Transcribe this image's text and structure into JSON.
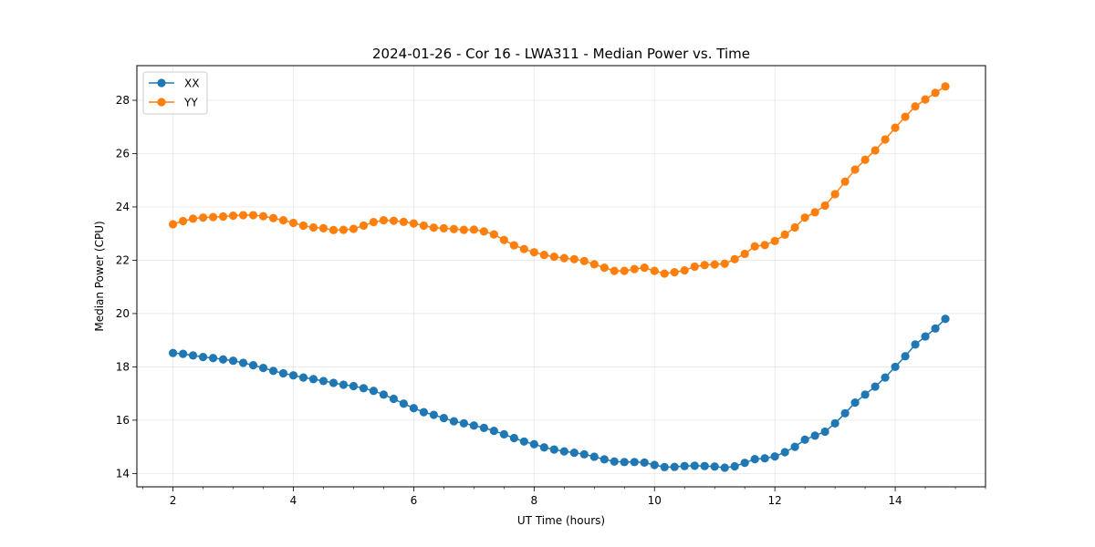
{
  "chart_data": {
    "type": "line",
    "title": "2024-01-26 - Cor 16 - LWA311 - Median Power vs. Time",
    "xlabel": "UT Time (hours)",
    "ylabel": "Median Power (CPU)",
    "xlim": [
      1.4,
      15.5
    ],
    "ylim": [
      13.5,
      29.3
    ],
    "xticks": [
      2,
      4,
      6,
      8,
      10,
      12,
      14
    ],
    "yticks": [
      14,
      16,
      18,
      20,
      22,
      24,
      26,
      28
    ],
    "grid": true,
    "legend": "upper-left",
    "x": [
      2.0,
      2.167,
      2.333,
      2.5,
      2.667,
      2.833,
      3.0,
      3.167,
      3.333,
      3.5,
      3.667,
      3.833,
      4.0,
      4.167,
      4.333,
      4.5,
      4.667,
      4.833,
      5.0,
      5.167,
      5.333,
      5.5,
      5.667,
      5.833,
      6.0,
      6.167,
      6.333,
      6.5,
      6.667,
      6.833,
      7.0,
      7.167,
      7.333,
      7.5,
      7.667,
      7.833,
      8.0,
      8.167,
      8.333,
      8.5,
      8.667,
      8.833,
      9.0,
      9.167,
      9.333,
      9.5,
      9.667,
      9.833,
      10.0,
      10.167,
      10.333,
      10.5,
      10.667,
      10.833,
      11.0,
      11.167,
      11.333,
      11.5,
      11.667,
      11.833,
      12.0,
      12.167,
      12.333,
      12.5,
      12.667,
      12.833,
      13.0,
      13.167,
      13.333,
      13.5,
      13.667,
      13.833,
      14.0,
      14.167,
      14.333,
      14.5,
      14.667,
      14.833
    ],
    "series": [
      {
        "name": "XX",
        "color": "#1f77b4",
        "values": [
          18.52,
          18.49,
          18.43,
          18.37,
          18.33,
          18.28,
          18.23,
          18.15,
          18.06,
          17.96,
          17.85,
          17.76,
          17.68,
          17.6,
          17.54,
          17.47,
          17.4,
          17.33,
          17.28,
          17.2,
          17.1,
          16.96,
          16.8,
          16.62,
          16.45,
          16.3,
          16.2,
          16.08,
          15.96,
          15.88,
          15.8,
          15.71,
          15.6,
          15.47,
          15.33,
          15.2,
          15.1,
          14.98,
          14.9,
          14.83,
          14.78,
          14.72,
          14.63,
          14.53,
          14.45,
          14.43,
          14.43,
          14.41,
          14.32,
          14.24,
          14.25,
          14.28,
          14.29,
          14.28,
          14.26,
          14.22,
          14.27,
          14.4,
          14.54,
          14.57,
          14.64,
          14.8,
          15.0,
          15.27,
          15.42,
          15.57,
          15.88,
          16.26,
          16.66,
          16.96,
          17.26,
          17.6,
          18.0,
          18.4,
          18.84,
          19.14,
          19.44,
          19.8
        ]
      },
      {
        "name": "YY",
        "color": "#ff7f0e",
        "values": [
          23.35,
          23.47,
          23.56,
          23.6,
          23.62,
          23.64,
          23.67,
          23.69,
          23.69,
          23.65,
          23.58,
          23.5,
          23.4,
          23.3,
          23.23,
          23.2,
          23.13,
          23.14,
          23.18,
          23.3,
          23.43,
          23.5,
          23.48,
          23.44,
          23.38,
          23.3,
          23.22,
          23.2,
          23.17,
          23.14,
          23.15,
          23.08,
          22.97,
          22.76,
          22.56,
          22.42,
          22.3,
          22.2,
          22.13,
          22.08,
          22.04,
          21.97,
          21.85,
          21.72,
          21.6,
          21.6,
          21.67,
          21.72,
          21.6,
          21.5,
          21.55,
          21.62,
          21.76,
          21.82,
          21.84,
          21.87,
          22.04,
          22.24,
          22.52,
          22.57,
          22.72,
          22.96,
          23.23,
          23.6,
          23.8,
          24.05,
          24.48,
          24.95,
          25.4,
          25.77,
          26.12,
          26.53,
          26.97,
          27.38,
          27.77,
          28.03,
          28.28,
          28.52
        ]
      }
    ]
  }
}
